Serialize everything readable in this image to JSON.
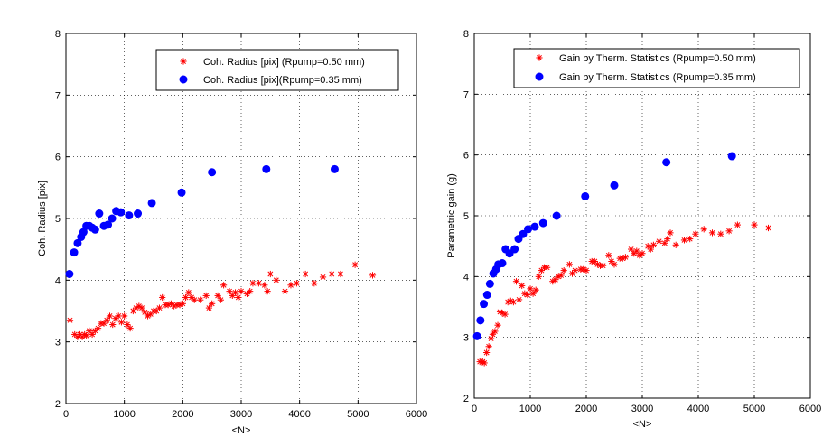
{
  "chart_data": [
    {
      "type": "scatter",
      "xlabel": "<N>",
      "ylabel": "Coh. Radius [pix]",
      "xlim": [
        0,
        6000
      ],
      "ylim": [
        2,
        8
      ],
      "xticks": [
        "0",
        "1000",
        "2000",
        "3000",
        "4000",
        "5000",
        "6000"
      ],
      "yticks": [
        "2",
        "3",
        "4",
        "5",
        "6",
        "7",
        "8"
      ],
      "grid": true,
      "legend_position": "top-right",
      "series": [
        {
          "name": "Coh. Radius [pix] (Rpump=0.50 mm)",
          "marker": "star",
          "color": "#ff0000",
          "x": [
            70,
            150,
            200,
            240,
            280,
            320,
            350,
            400,
            450,
            500,
            550,
            600,
            650,
            700,
            750,
            800,
            850,
            900,
            950,
            1000,
            1050,
            1100,
            1150,
            1200,
            1250,
            1300,
            1350,
            1400,
            1450,
            1500,
            1550,
            1600,
            1650,
            1700,
            1750,
            1800,
            1850,
            1900,
            1950,
            2000,
            2050,
            2100,
            2150,
            2200,
            2300,
            2400,
            2450,
            2500,
            2600,
            2650,
            2700,
            2800,
            2850,
            2900,
            2950,
            3000,
            3100,
            3150,
            3200,
            3300,
            3400,
            3450,
            3500,
            3600,
            3750,
            3850,
            3950,
            4100,
            4250,
            4400,
            4550,
            4700,
            4950,
            5250
          ],
          "y": [
            3.35,
            3.12,
            3.08,
            3.12,
            3.08,
            3.12,
            3.1,
            3.18,
            3.12,
            3.18,
            3.22,
            3.3,
            3.3,
            3.35,
            3.42,
            3.28,
            3.38,
            3.42,
            3.32,
            3.42,
            3.28,
            3.22,
            3.5,
            3.55,
            3.58,
            3.55,
            3.48,
            3.42,
            3.45,
            3.5,
            3.5,
            3.55,
            3.72,
            3.6,
            3.6,
            3.62,
            3.58,
            3.6,
            3.6,
            3.62,
            3.72,
            3.8,
            3.72,
            3.68,
            3.68,
            3.75,
            3.55,
            3.62,
            3.75,
            3.68,
            3.92,
            3.82,
            3.75,
            3.8,
            3.72,
            3.82,
            3.78,
            3.82,
            3.95,
            3.95,
            3.92,
            3.82,
            4.1,
            4.0,
            3.82,
            3.92,
            3.95,
            4.1,
            3.95,
            4.05,
            4.1,
            4.1,
            4.25,
            4.08
          ]
        },
        {
          "name": "Coh. Radius [pix](Rpump=0.35 mm)",
          "marker": "circle",
          "color": "#0000ff",
          "x": [
            60,
            140,
            200,
            260,
            300,
            350,
            400,
            450,
            500,
            570,
            650,
            720,
            790,
            860,
            940,
            1080,
            1230,
            1470,
            1980,
            2500,
            3430,
            4600
          ],
          "y": [
            4.1,
            4.45,
            4.6,
            4.7,
            4.78,
            4.88,
            4.88,
            4.85,
            4.82,
            5.08,
            4.88,
            4.9,
            5.0,
            5.12,
            5.1,
            5.05,
            5.08,
            5.25,
            5.42,
            5.75,
            5.8,
            5.8
          ]
        }
      ]
    },
    {
      "type": "scatter",
      "xlabel": "<N>",
      "ylabel": "Parametric gain (g)",
      "xlim": [
        0,
        6000
      ],
      "ylim": [
        2,
        8
      ],
      "xticks": [
        "0",
        "1000",
        "2000",
        "3000",
        "4000",
        "5000",
        "6000"
      ],
      "yticks": [
        "2",
        "3",
        "4",
        "5",
        "6",
        "7",
        "8"
      ],
      "grid": true,
      "legend_position": "top-right",
      "series": [
        {
          "name": "Gain by Therm. Statistics (Rpump=0.50 mm)",
          "marker": "star",
          "color": "#ff0000",
          "x": [
            100,
            150,
            180,
            220,
            260,
            300,
            330,
            370,
            420,
            460,
            500,
            550,
            600,
            650,
            700,
            750,
            800,
            850,
            900,
            950,
            1000,
            1050,
            1100,
            1150,
            1200,
            1250,
            1300,
            1400,
            1450,
            1500,
            1550,
            1600,
            1700,
            1750,
            1800,
            1900,
            1950,
            2000,
            2100,
            2150,
            2200,
            2250,
            2300,
            2400,
            2450,
            2500,
            2600,
            2650,
            2700,
            2800,
            2850,
            2900,
            2950,
            3000,
            3100,
            3150,
            3200,
            3300,
            3400,
            3450,
            3500,
            3600,
            3750,
            3850,
            3950,
            4100,
            4250,
            4400,
            4550,
            4700,
            5000,
            5250
          ],
          "y": [
            2.6,
            2.6,
            2.58,
            2.75,
            2.85,
            2.98,
            3.05,
            3.1,
            3.2,
            3.42,
            3.4,
            3.38,
            3.58,
            3.6,
            3.58,
            3.92,
            3.62,
            3.85,
            3.72,
            3.7,
            3.8,
            3.72,
            3.78,
            4.0,
            4.1,
            4.15,
            4.15,
            3.92,
            3.95,
            4.0,
            4.02,
            4.1,
            4.2,
            4.05,
            4.1,
            4.12,
            4.12,
            4.1,
            4.25,
            4.25,
            4.2,
            4.18,
            4.18,
            4.35,
            4.25,
            4.2,
            4.3,
            4.3,
            4.32,
            4.45,
            4.38,
            4.42,
            4.35,
            4.38,
            4.5,
            4.45,
            4.52,
            4.58,
            4.55,
            4.62,
            4.72,
            4.52,
            4.6,
            4.62,
            4.7,
            4.78,
            4.72,
            4.7,
            4.75,
            4.85,
            4.85,
            4.8
          ]
        },
        {
          "name": "Gain by Therm. Statistics (Rpump=0.35 mm)",
          "marker": "circle",
          "color": "#0000ff",
          "x": [
            50,
            110,
            170,
            230,
            280,
            340,
            390,
            430,
            500,
            560,
            630,
            720,
            790,
            870,
            960,
            1080,
            1230,
            1470,
            1980,
            2500,
            3430,
            4600
          ],
          "y": [
            3.02,
            3.28,
            3.55,
            3.7,
            3.88,
            4.05,
            4.12,
            4.2,
            4.22,
            4.45,
            4.38,
            4.45,
            4.62,
            4.7,
            4.78,
            4.82,
            4.88,
            5.0,
            5.32,
            5.5,
            5.88,
            5.98
          ]
        }
      ]
    }
  ]
}
